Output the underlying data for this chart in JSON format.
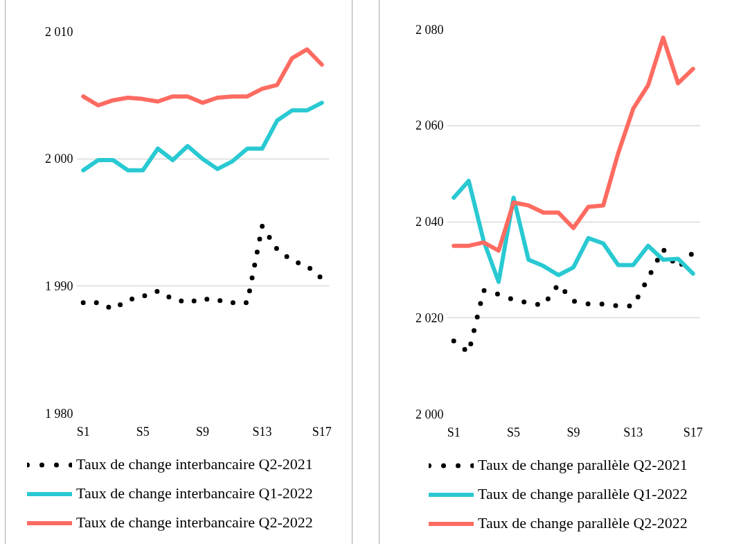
{
  "chart_data": [
    {
      "type": "line",
      "categories": [
        "S1",
        null,
        null,
        null,
        "S5",
        null,
        null,
        null,
        "S9",
        null,
        null,
        null,
        "S13",
        null,
        null,
        null,
        "S17"
      ],
      "ylim": [
        1980,
        2010
      ],
      "yticks": [
        {
          "value": 1980,
          "label": "1 980"
        },
        {
          "value": 1990,
          "label": "1 990"
        },
        {
          "value": 2000,
          "label": "2 000"
        },
        {
          "value": 2010,
          "label": "2 010"
        }
      ],
      "grid": "y",
      "legend": "bottom",
      "series": [
        {
          "name": "Taux de change interbancaire Q2-2021",
          "color": "#000000",
          "line_style": "dotted",
          "values": [
            1988.7,
            1988.7,
            1988.2,
            1988.9,
            1989.2,
            1989.6,
            1989.0,
            1988.7,
            1989.0,
            1988.9,
            1988.7,
            1988.7,
            1994.7,
            1992.9,
            1992.0,
            1991.6,
            1990.6
          ]
        },
        {
          "name": "Taux de change interbancaire Q1-2022",
          "color": "#29c9d2",
          "line_style": "solid",
          "values": [
            1999.1,
            1999.9,
            1999.9,
            1999.1,
            1999.1,
            2000.8,
            1999.9,
            2001.0,
            2000.0,
            1999.2,
            1999.8,
            2000.8,
            2000.8,
            2003.0,
            2003.8,
            2003.8,
            2004.4
          ]
        },
        {
          "name": "Taux de change interbancaire Q2-2022",
          "color": "#fe6b61",
          "line_style": "solid",
          "values": [
            2004.9,
            2004.2,
            2004.6,
            2004.8,
            2004.7,
            2004.5,
            2004.9,
            2004.9,
            2004.4,
            2004.8,
            2004.9,
            2004.9,
            2005.5,
            2005.8,
            2007.9,
            2008.6,
            2007.4
          ]
        }
      ]
    },
    {
      "type": "line",
      "categories": [
        "S1",
        null,
        null,
        null,
        "S5",
        null,
        null,
        null,
        "S9",
        null,
        null,
        null,
        "S13",
        null,
        null,
        null,
        "S17"
      ],
      "ylim": [
        2000,
        2080
      ],
      "yticks": [
        {
          "value": 2000,
          "label": "2 000"
        },
        {
          "value": 2020,
          "label": "2 020"
        },
        {
          "value": 2040,
          "label": "2 040"
        },
        {
          "value": 2060,
          "label": "2 060"
        },
        {
          "value": 2080,
          "label": "2 080"
        }
      ],
      "grid": "y",
      "legend": "bottom",
      "series": [
        {
          "name": "Taux de change parallèle Q2-2021",
          "color": "#000000",
          "line_style": "dotted",
          "values": [
            2015.2,
            2012.8,
            2025.7,
            2024.9,
            2023.8,
            2023.1,
            2022.6,
            2027.0,
            2023.5,
            2022.9,
            2022.9,
            2022.5,
            2022.5,
            2028.3,
            2034.3,
            2030.4,
            2033.6
          ]
        },
        {
          "name": "Taux de change parallèle Q1-2022",
          "color": "#29c9d2",
          "line_style": "solid",
          "values": [
            2045.0,
            2048.5,
            2036.0,
            2027.5,
            2045.0,
            2032.1,
            2030.8,
            2028.9,
            2030.5,
            2036.6,
            2035.5,
            2031.0,
            2031.0,
            2035.0,
            2032.1,
            2032.3,
            2029.2
          ]
        },
        {
          "name": "Taux de change parallèle Q2-2022",
          "color": "#fe6b61",
          "line_style": "solid",
          "values": [
            2035.0,
            2035.0,
            2035.7,
            2034.0,
            2044.0,
            2043.4,
            2041.9,
            2041.9,
            2038.7,
            2043.1,
            2043.4,
            2054.3,
            2063.5,
            2068.4,
            2078.3,
            2068.8,
            2071.8
          ]
        }
      ]
    }
  ]
}
